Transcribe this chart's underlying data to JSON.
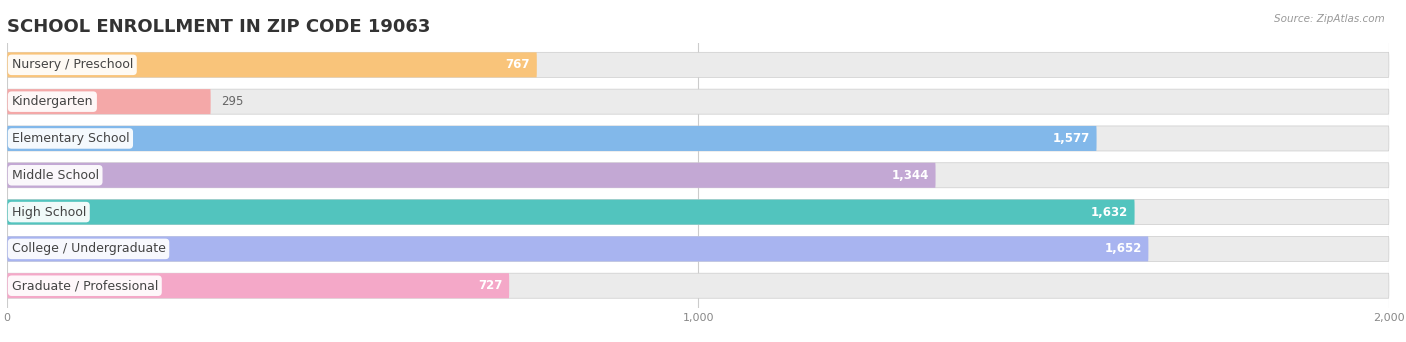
{
  "title": "SCHOOL ENROLLMENT IN ZIP CODE 19063",
  "source": "Source: ZipAtlas.com",
  "categories": [
    "Nursery / Preschool",
    "Kindergarten",
    "Elementary School",
    "Middle School",
    "High School",
    "College / Undergraduate",
    "Graduate / Professional"
  ],
  "values": [
    767,
    295,
    1577,
    1344,
    1632,
    1652,
    727
  ],
  "colors": [
    "#F9C47A",
    "#F4A8A8",
    "#82B8EA",
    "#C3A8D4",
    "#52C4BE",
    "#A8B4F0",
    "#F4A8C8"
  ],
  "xlim": [
    0,
    2000
  ],
  "xticks": [
    0,
    1000,
    2000
  ],
  "bg_color": "#ffffff",
  "bar_bg_color": "#ebebeb",
  "title_fontsize": 13,
  "label_fontsize": 9,
  "value_fontsize": 8.5,
  "bar_height": 0.68,
  "value_inside_threshold": 600
}
